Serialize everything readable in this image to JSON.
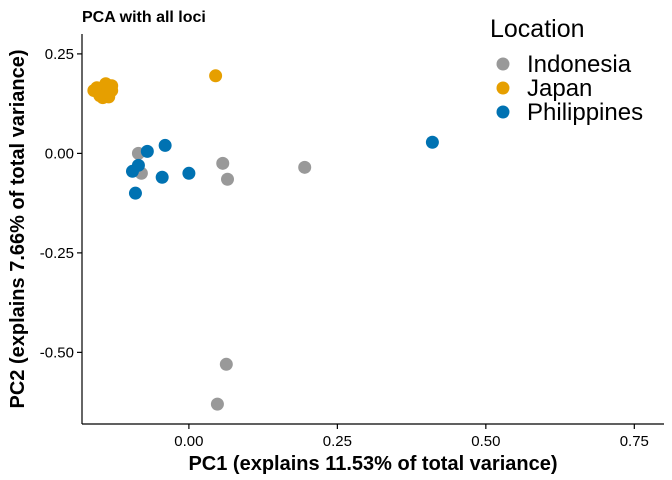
{
  "chart_data": {
    "type": "scatter",
    "title": "PCA with all loci",
    "xlabel": "PC1 (explains 11.53% of total variance)",
    "ylabel": "PC2 (explains 7.66% of total variance)",
    "xlim": [
      -0.18,
      0.8
    ],
    "ylim": [
      -0.68,
      0.3
    ],
    "xticks": [
      0.0,
      0.25,
      0.5,
      0.75
    ],
    "xtick_labels": [
      "0.00",
      "0.25",
      "0.50",
      "0.75"
    ],
    "yticks": [
      0.25,
      0.0,
      -0.25,
      -0.5
    ],
    "ytick_labels": [
      "0.25",
      "0.00",
      "-0.25",
      "-0.50"
    ],
    "grid": false,
    "legend": {
      "title": "Location",
      "placement": "top-right"
    },
    "series": [
      {
        "name": "Indonesia",
        "color": "#999999",
        "points": [
          [
            -0.085,
            0.0
          ],
          [
            -0.08,
            -0.05
          ],
          [
            0.057,
            -0.025
          ],
          [
            0.065,
            -0.065
          ],
          [
            0.195,
            -0.035
          ],
          [
            0.063,
            -0.53
          ],
          [
            0.048,
            -0.63
          ]
        ]
      },
      {
        "name": "Japan",
        "color": "#E69F00",
        "points": [
          [
            -0.16,
            0.158
          ],
          [
            -0.15,
            0.15
          ],
          [
            -0.14,
            0.162
          ],
          [
            -0.13,
            0.158
          ],
          [
            -0.145,
            0.14
          ],
          [
            -0.135,
            0.142
          ],
          [
            -0.155,
            0.165
          ],
          [
            -0.14,
            0.175
          ],
          [
            -0.13,
            0.17
          ],
          [
            -0.15,
            0.145
          ],
          [
            0.045,
            0.195
          ]
        ]
      },
      {
        "name": "Philippines",
        "color": "#0072B2",
        "points": [
          [
            -0.095,
            -0.045
          ],
          [
            -0.085,
            -0.03
          ],
          [
            -0.07,
            0.005
          ],
          [
            -0.09,
            -0.1
          ],
          [
            -0.04,
            0.02
          ],
          [
            -0.045,
            -0.06
          ],
          [
            0.0,
            -0.05
          ],
          [
            0.41,
            0.028
          ]
        ]
      }
    ]
  }
}
